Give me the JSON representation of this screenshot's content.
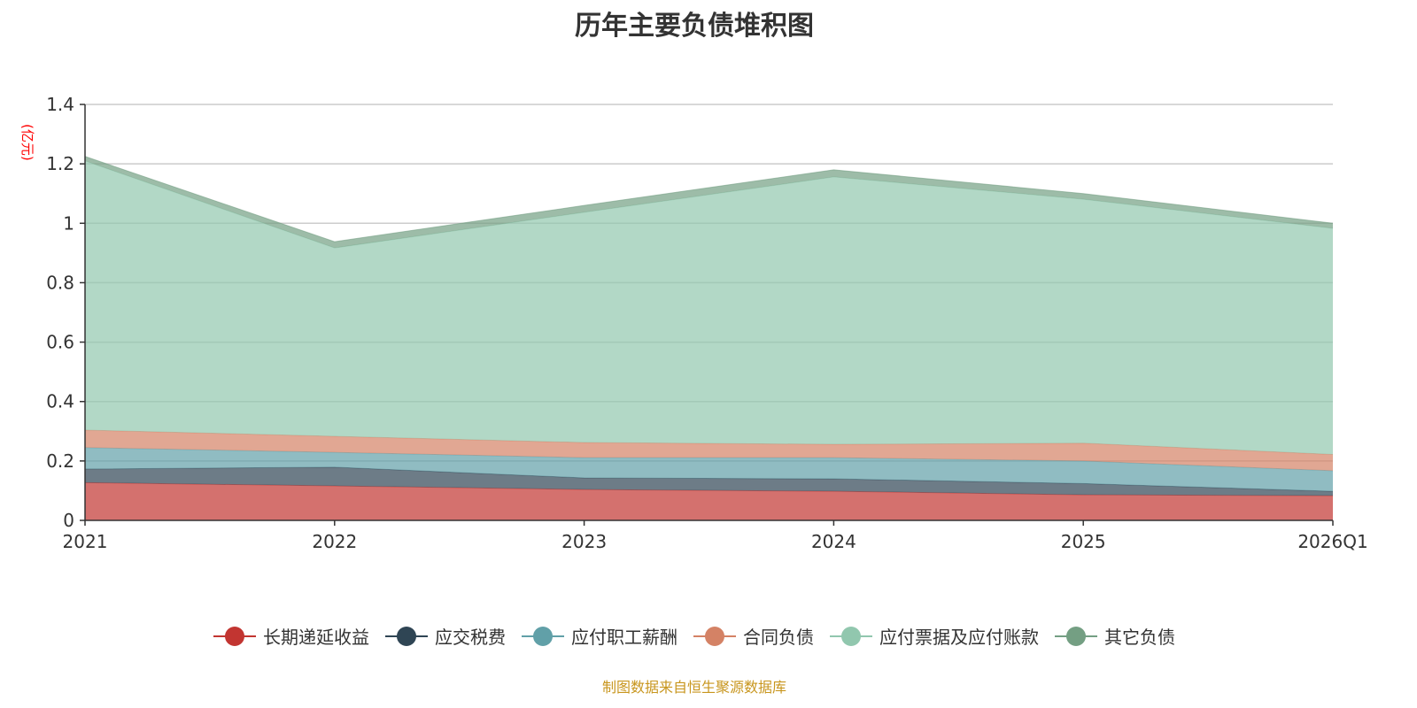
{
  "chart_data": {
    "type": "area",
    "stacked": true,
    "title": "历年主要负债堆积图",
    "ylabel": "(亿元)",
    "xlabel": "",
    "categories": [
      "2021",
      "2022",
      "2023",
      "2024",
      "2025",
      "2026Q1"
    ],
    "ylim": [
      0,
      1.4
    ],
    "yticks": [
      "0",
      "0.2",
      "0.4",
      "0.6",
      "0.8",
      "1",
      "1.2",
      "1.4"
    ],
    "grid": true,
    "legend_position": "bottom",
    "series": [
      {
        "name": "长期递延收益",
        "color": "#c23531",
        "values": [
          0.127,
          0.116,
          0.104,
          0.098,
          0.086,
          0.083
        ]
      },
      {
        "name": "应交税费",
        "color": "#2f4554",
        "values": [
          0.046,
          0.063,
          0.039,
          0.042,
          0.038,
          0.015
        ]
      },
      {
        "name": "应付职工薪酬",
        "color": "#61a0a8",
        "values": [
          0.072,
          0.05,
          0.068,
          0.071,
          0.076,
          0.069
        ]
      },
      {
        "name": "合同负债",
        "color": "#d48265",
        "values": [
          0.059,
          0.054,
          0.051,
          0.045,
          0.06,
          0.055
        ]
      },
      {
        "name": "应付票据及应付账款",
        "color": "#91c7ae",
        "values": [
          0.906,
          0.634,
          0.775,
          0.9,
          0.821,
          0.761
        ]
      },
      {
        "name": "其它负债",
        "color": "#749f83",
        "values": [
          0.015,
          0.021,
          0.023,
          0.024,
          0.019,
          0.017
        ]
      }
    ]
  },
  "footer": "制图数据来自恒生聚源数据库"
}
